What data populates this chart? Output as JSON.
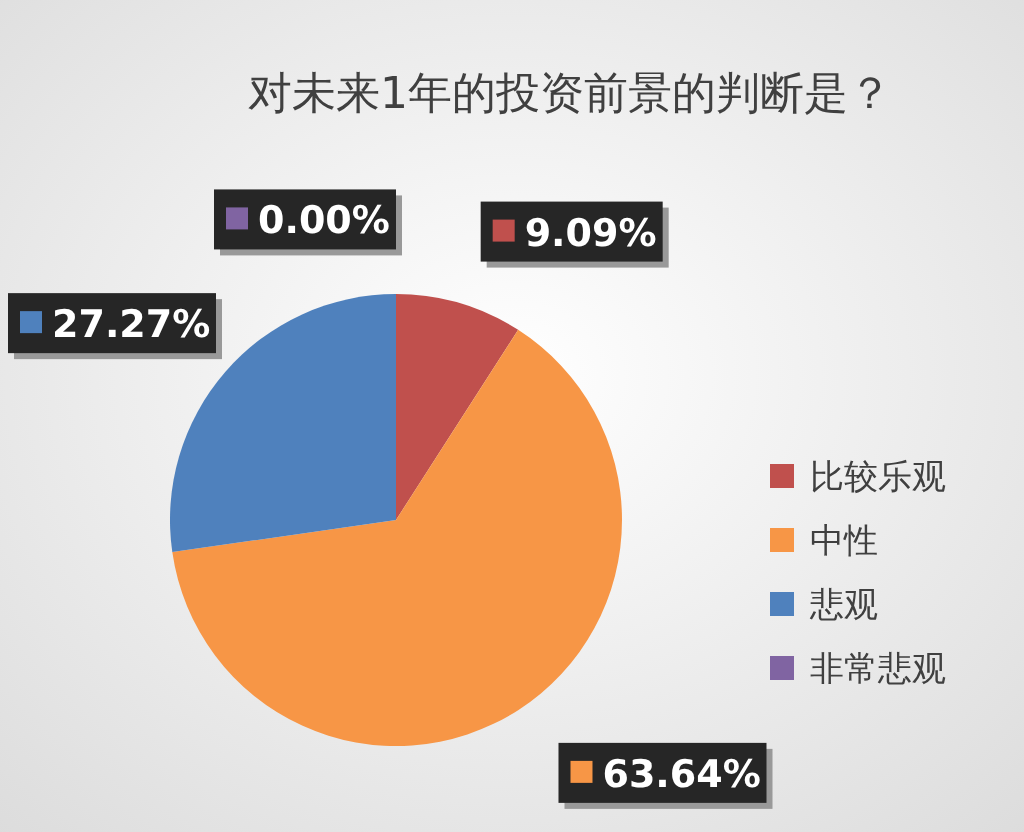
{
  "chart_data": {
    "type": "pie",
    "title": "对未来1年的投资前景的判断是？",
    "categories": [
      "比较乐观",
      "中性",
      "悲观",
      "非常悲观"
    ],
    "values": [
      9.09,
      63.64,
      27.27,
      0.0
    ],
    "colors": [
      "#c0504d",
      "#f79646",
      "#4f81bd",
      "#8064a2"
    ],
    "value_labels": [
      "9.09%",
      "63.64%",
      "27.27%",
      "0.00%"
    ],
    "legend": "right"
  }
}
